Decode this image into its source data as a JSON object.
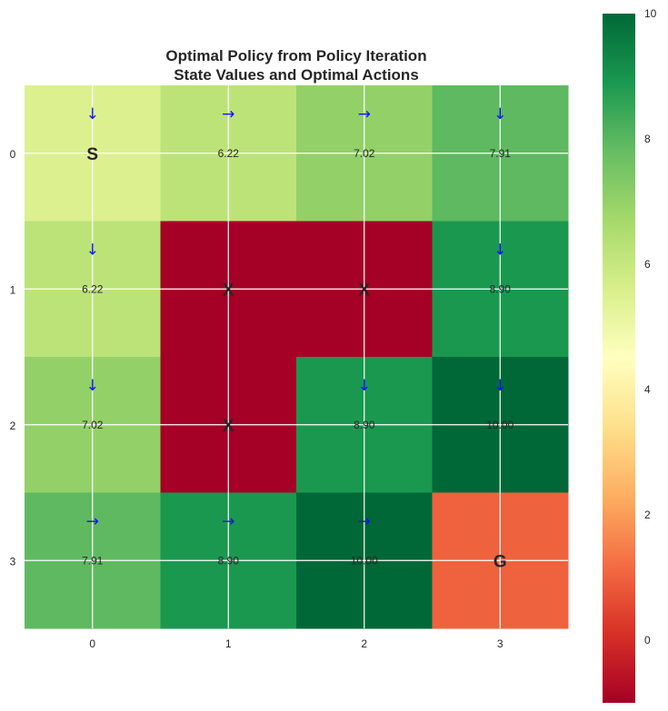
{
  "chart_data": {
    "type": "heatmap",
    "title": [
      "Optimal Policy from Policy Iteration",
      "State Values and Optimal Actions"
    ],
    "x_ticks": [
      "0",
      "1",
      "2",
      "3"
    ],
    "y_ticks": [
      "0",
      "1",
      "2",
      "3"
    ],
    "colormap": "RdYlGn",
    "colorbar": {
      "min": -1,
      "max": 10,
      "ticks": [
        "0",
        "2",
        "4",
        "6",
        "8",
        "10"
      ]
    },
    "grid": true,
    "cells": [
      [
        {
          "value": 5.5,
          "action": "↓",
          "label": "S",
          "kind": "start"
        },
        {
          "value": 6.22,
          "action": "→",
          "label": "6.22",
          "kind": "normal"
        },
        {
          "value": 7.02,
          "action": "→",
          "label": "7.02",
          "kind": "normal"
        },
        {
          "value": 7.91,
          "action": "↓",
          "label": "7.91",
          "kind": "normal"
        }
      ],
      [
        {
          "value": 6.22,
          "action": "↓",
          "label": "6.22",
          "kind": "normal"
        },
        {
          "value": -1,
          "action": "",
          "label": "X",
          "kind": "obstacle"
        },
        {
          "value": -1,
          "action": "",
          "label": "X",
          "kind": "obstacle"
        },
        {
          "value": 8.9,
          "action": "↓",
          "label": "8.90",
          "kind": "normal"
        }
      ],
      [
        {
          "value": 7.02,
          "action": "↓",
          "label": "7.02",
          "kind": "normal"
        },
        {
          "value": -1,
          "action": "",
          "label": "X",
          "kind": "obstacle"
        },
        {
          "value": 8.9,
          "action": "↓",
          "label": "8.90",
          "kind": "normal"
        },
        {
          "value": 10.0,
          "action": "↓",
          "label": "10.00",
          "kind": "normal"
        }
      ],
      [
        {
          "value": 7.91,
          "action": "→",
          "label": "7.91",
          "kind": "normal"
        },
        {
          "value": 8.9,
          "action": "→",
          "label": "8.90",
          "kind": "normal"
        },
        {
          "value": 10.0,
          "action": "→",
          "label": "10.00",
          "kind": "normal"
        },
        {
          "value": 1.0,
          "action": "",
          "label": "G",
          "kind": "goal"
        }
      ]
    ]
  }
}
